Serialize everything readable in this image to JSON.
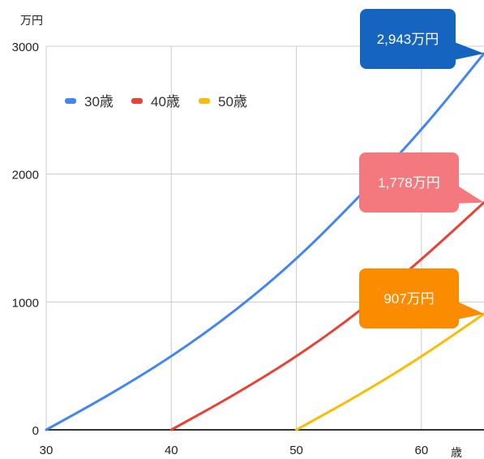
{
  "chart_data": {
    "type": "line",
    "y_unit": "万円",
    "x_unit": "歳",
    "xlim": [
      30,
      65
    ],
    "ylim": [
      0,
      3000
    ],
    "x_ticks": [
      30,
      40,
      50,
      60
    ],
    "y_ticks": [
      0,
      1000,
      2000,
      3000
    ],
    "grid": true,
    "legend_position": "top-left",
    "series": [
      {
        "name": "30歳",
        "color": "#4285f4",
        "start": 30,
        "x": [
          30,
          35,
          40,
          45,
          50,
          55,
          60,
          65
        ],
        "y": [
          0,
          270,
          570,
          920,
          1330,
          1820,
          2340,
          2943
        ],
        "callout": "2,943万円",
        "callout_color": "#1565c0"
      },
      {
        "name": "40歳",
        "color": "#e94235",
        "start": 40,
        "x": [
          40,
          45,
          50,
          55,
          60,
          65
        ],
        "y": [
          0,
          270,
          570,
          920,
          1330,
          1778
        ],
        "callout": "1,778万円",
        "callout_color": "#f4797f"
      },
      {
        "name": "50歳",
        "color": "#fbbc04",
        "start": 50,
        "x": [
          50,
          55,
          60,
          65
        ],
        "y": [
          0,
          270,
          570,
          907
        ],
        "callout": "907万円",
        "callout_color": "#fb8c00"
      }
    ]
  }
}
